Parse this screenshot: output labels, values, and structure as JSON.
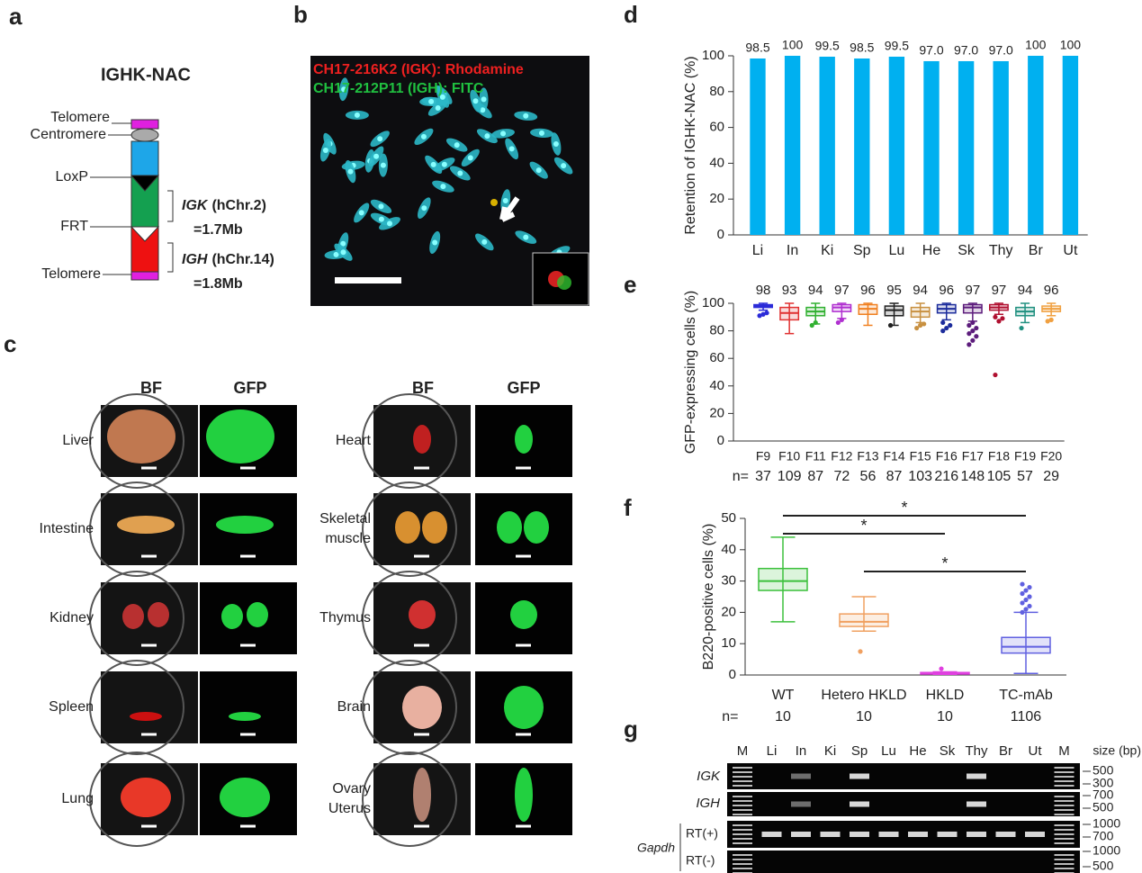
{
  "panel_labels": [
    "a",
    "b",
    "c",
    "d",
    "e",
    "f",
    "g"
  ],
  "panel_a": {
    "title": "IGHK-NAC",
    "parts": [
      "Telomere",
      "Centromere",
      "LoxP",
      "FRT",
      "Telomere"
    ],
    "segments": [
      {
        "gene": "IGK",
        "chr": "(hChr.2)",
        "size": "=1.7Mb"
      },
      {
        "gene": "IGH",
        "chr": "(hChr.14)",
        "size": "=1.8Mb"
      }
    ]
  },
  "panel_b": {
    "probes": [
      "CH17-216K2 (IGK): Rhodamine",
      "CH17-212P11 (IGH): FITC"
    ]
  },
  "panel_c": {
    "headers": [
      "BF",
      "GFP",
      "BF",
      "GFP"
    ],
    "left_organs": [
      [
        "Liver"
      ],
      [
        "Intestine"
      ],
      [
        "Kidney"
      ],
      [
        "Spleen"
      ],
      [
        "Lung"
      ]
    ],
    "right_organs": [
      [
        "Heart"
      ],
      [
        "Skeletal",
        "muscle"
      ],
      [
        "Thymus"
      ],
      [
        "Brain"
      ],
      [
        "Ovary",
        "Uterus"
      ]
    ]
  },
  "chart_data": [
    {
      "type": "bar",
      "categories": [
        "Li",
        "In",
        "Ki",
        "Sp",
        "Lu",
        "He",
        "Sk",
        "Thy",
        "Br",
        "Ut"
      ],
      "values": [
        98.5,
        100,
        99.5,
        98.5,
        99.5,
        97.0,
        97.0,
        97.0,
        100,
        100
      ],
      "value_labels": [
        "98.5",
        "100",
        "99.5",
        "98.5",
        "99.5",
        "97.0",
        "97.0",
        "97.0",
        "100",
        "100"
      ],
      "color": "#00b0f0",
      "ylabel": "Retention of IGHK-NAC (%)",
      "ylim": [
        0,
        100
      ],
      "yticks": [
        0,
        20,
        40,
        60,
        80,
        100
      ]
    },
    {
      "type": "box",
      "categories": [
        "F9",
        "F10",
        "F11",
        "F12",
        "F13",
        "F14",
        "F15",
        "F16",
        "F17",
        "F18",
        "F19",
        "F20"
      ],
      "medians": [
        98,
        93,
        94,
        97,
        96,
        95,
        94,
        96,
        97,
        97,
        94,
        96
      ],
      "q1": [
        97,
        88,
        91,
        94,
        92,
        91,
        90,
        93,
        93,
        95,
        91,
        94
      ],
      "q3": [
        99,
        97,
        97,
        99,
        99,
        98,
        97,
        99,
        99,
        99,
        97,
        98
      ],
      "whislo": [
        95,
        78,
        85,
        89,
        84,
        84,
        86,
        88,
        87,
        92,
        86,
        91
      ],
      "whishi": [
        100,
        100,
        100,
        100,
        100,
        100,
        100,
        100,
        100,
        100,
        100,
        100
      ],
      "fliers": [
        [
          91,
          92,
          93
        ],
        [],
        [
          84,
          86
        ],
        [
          86,
          88
        ],
        [],
        [
          84
        ],
        [
          82,
          84,
          85
        ],
        [
          80,
          82,
          84,
          86
        ],
        [
          70,
          73,
          76,
          78,
          80,
          82,
          84,
          86
        ],
        [
          48,
          87,
          89,
          90
        ],
        [
          82
        ],
        [
          87,
          88
        ]
      ],
      "colors": [
        "#2b2bd8",
        "#e03030",
        "#30b030",
        "#b030d0",
        "#f08020",
        "#202020",
        "#c89040",
        "#1c2c9c",
        "#5c1c7c",
        "#b01030",
        "#209080",
        "#f0a040"
      ],
      "ylabel": "GFP-expressing cells (%)",
      "ylim": [
        0,
        100
      ],
      "yticks": [
        0,
        20,
        40,
        60,
        80,
        100
      ],
      "n_label": "n=",
      "n": [
        37,
        109,
        87,
        72,
        56,
        87,
        103,
        216,
        148,
        105,
        57,
        29
      ]
    },
    {
      "type": "box",
      "categories": [
        "WT",
        "Hetero HKLD",
        "HKLD",
        "TC-mAb"
      ],
      "medians": [
        30,
        17,
        0.5,
        9
      ],
      "q1": [
        27,
        15.5,
        0.3,
        7
      ],
      "q3": [
        34,
        19.5,
        0.8,
        12
      ],
      "whislo": [
        17,
        14,
        0.2,
        0.5
      ],
      "whishi": [
        44,
        25,
        1,
        20
      ],
      "fliers": [
        [],
        [
          7.5
        ],
        [
          2
        ],
        [
          20,
          21,
          22,
          23,
          24,
          25,
          26,
          27,
          28,
          29
        ]
      ],
      "colors": [
        "#3cc03c",
        "#f0a060",
        "#e040e0",
        "#6060e0"
      ],
      "ylabel": "B220-positive cells (%)",
      "ylim": [
        0,
        50
      ],
      "yticks": [
        0,
        10,
        20,
        30,
        40,
        50
      ],
      "n_label": "n=",
      "n": [
        10,
        10,
        10,
        1106
      ],
      "annotations": [
        "*",
        "*",
        "*"
      ]
    }
  ],
  "panel_g": {
    "lanes": [
      "M",
      "Li",
      "In",
      "Ki",
      "Sp",
      "Lu",
      "He",
      "Sk",
      "Thy",
      "Br",
      "Ut",
      "M"
    ],
    "size_title": "size (bp)",
    "genes": [
      "IGK",
      "IGH",
      "Gapdh"
    ],
    "rt": [
      "RT(+)",
      "RT(-)"
    ],
    "sizes": [
      500,
      300,
      700,
      500,
      1000,
      700,
      1000,
      500
    ]
  }
}
